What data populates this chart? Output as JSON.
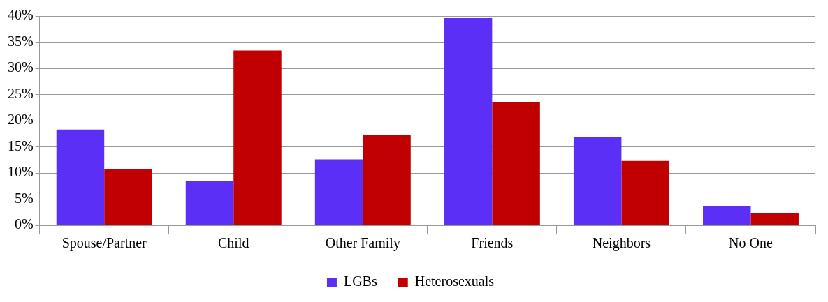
{
  "chart_data": {
    "type": "bar",
    "categories": [
      "Spouse/Partner",
      "Child",
      "Other Family",
      "Friends",
      "Neighbors",
      "No One"
    ],
    "series": [
      {
        "name": "LGBs",
        "color": "#5b2ff5",
        "values": [
          18.3,
          8.4,
          12.6,
          39.6,
          16.9,
          3.7
        ]
      },
      {
        "name": "Heterosexuals",
        "color": "#c00000",
        "values": [
          10.7,
          33.4,
          17.2,
          23.6,
          12.3,
          2.3
        ]
      }
    ],
    "ylim": [
      0,
      40
    ],
    "yticks": [
      {
        "value": 0,
        "label": "0%"
      },
      {
        "value": 5,
        "label": "5%"
      },
      {
        "value": 10,
        "label": "10%"
      },
      {
        "value": 15,
        "label": "15%"
      },
      {
        "value": 20,
        "label": "20%"
      },
      {
        "value": 25,
        "label": "25%"
      },
      {
        "value": 30,
        "label": "30%"
      },
      {
        "value": 35,
        "label": "35%"
      },
      {
        "value": 40,
        "label": "40%"
      }
    ],
    "grid": "y",
    "legend": "bottom"
  }
}
